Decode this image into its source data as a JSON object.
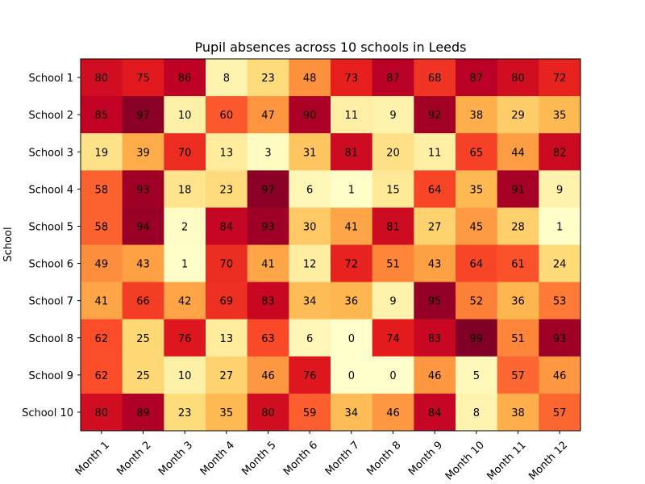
{
  "chart_data": {
    "type": "heatmap",
    "title": "Pupil absences across 10 schools in Leeds",
    "xlabel": "",
    "ylabel": "School",
    "columns": [
      "Month 1",
      "Month 2",
      "Month 3",
      "Month 4",
      "Month 5",
      "Month 6",
      "Month 7",
      "Month 8",
      "Month 9",
      "Month 10",
      "Month 11",
      "Month 12"
    ],
    "rows": [
      "School 1",
      "School 2",
      "School 3",
      "School 4",
      "School 5",
      "School 6",
      "School 7",
      "School 8",
      "School 9",
      "School 10"
    ],
    "values": [
      [
        80,
        75,
        86,
        8,
        23,
        48,
        73,
        87,
        68,
        87,
        80,
        72
      ],
      [
        85,
        97,
        10,
        60,
        47,
        90,
        11,
        9,
        92,
        38,
        29,
        35
      ],
      [
        19,
        39,
        70,
        13,
        3,
        31,
        81,
        20,
        11,
        65,
        44,
        82
      ],
      [
        58,
        93,
        18,
        23,
        97,
        6,
        1,
        15,
        64,
        35,
        91,
        9
      ],
      [
        58,
        94,
        2,
        84,
        93,
        30,
        41,
        81,
        27,
        45,
        28,
        1
      ],
      [
        49,
        43,
        1,
        70,
        41,
        12,
        72,
        51,
        43,
        64,
        61,
        24
      ],
      [
        41,
        66,
        42,
        69,
        83,
        34,
        36,
        9,
        95,
        52,
        36,
        53
      ],
      [
        62,
        25,
        76,
        13,
        63,
        6,
        0,
        74,
        83,
        99,
        51,
        93
      ],
      [
        62,
        25,
        10,
        27,
        46,
        76,
        0,
        0,
        46,
        5,
        57,
        46
      ],
      [
        80,
        89,
        23,
        35,
        80,
        59,
        34,
        46,
        84,
        8,
        38,
        57
      ]
    ],
    "colormap": "YlOrRd",
    "value_range": [
      0,
      99
    ]
  }
}
